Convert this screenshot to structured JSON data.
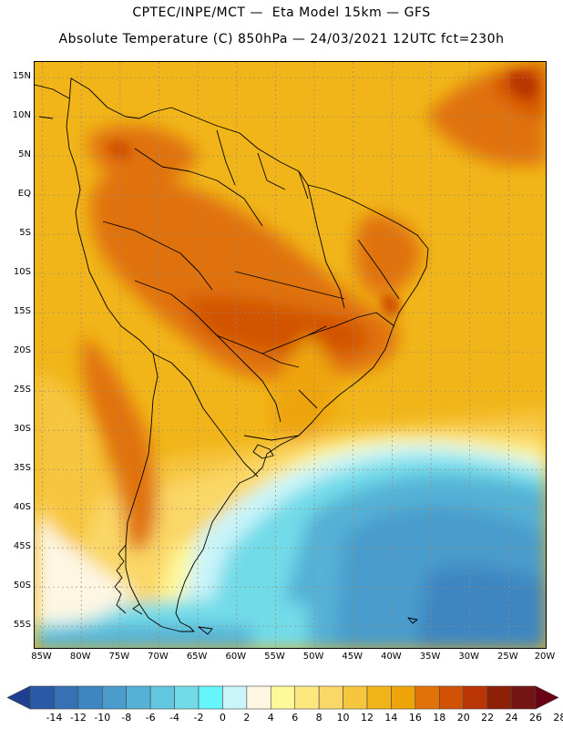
{
  "header": {
    "line1": "CPTEC/INPE/MCT —  Eta Model 15km — GFS",
    "line2": "Absolute Temperature (C) 850hPa — 24/03/2021 12UTC fct=230h"
  },
  "map": {
    "lat_ticks": [
      "15N",
      "10N",
      "5N",
      "EQ",
      "5S",
      "10S",
      "15S",
      "20S",
      "25S",
      "30S",
      "35S",
      "40S",
      "45S",
      "50S",
      "55S"
    ],
    "lon_ticks": [
      "85W",
      "80W",
      "75W",
      "70W",
      "65W",
      "60W",
      "55W",
      "50W",
      "45W",
      "40W",
      "35W",
      "30W",
      "25W",
      "20W"
    ],
    "lat_range": [
      -58,
      17
    ],
    "lon_range": [
      -86,
      -20
    ]
  },
  "colorbar": {
    "labels": [
      "-14",
      "-12",
      "-10",
      "-8",
      "-6",
      "-4",
      "-2",
      "0",
      "2",
      "4",
      "6",
      "8",
      "10",
      "12",
      "14",
      "16",
      "18",
      "20",
      "22",
      "24",
      "26",
      "28"
    ],
    "colors": [
      "#1e3f8f",
      "#2a5aa6",
      "#3571b4",
      "#3e86c2",
      "#4a9ccc",
      "#55b1d6",
      "#62c6df",
      "#72dbe8",
      "#66f5fa",
      "#c9f4fa",
      "#fdf6e3",
      "#fefa9a",
      "#fde880",
      "#fad766",
      "#f7c63f",
      "#f1b519",
      "#eea50b",
      "#e07208",
      "#d25205",
      "#b93505",
      "#8e2007",
      "#721513",
      "#6b0014"
    ]
  }
}
